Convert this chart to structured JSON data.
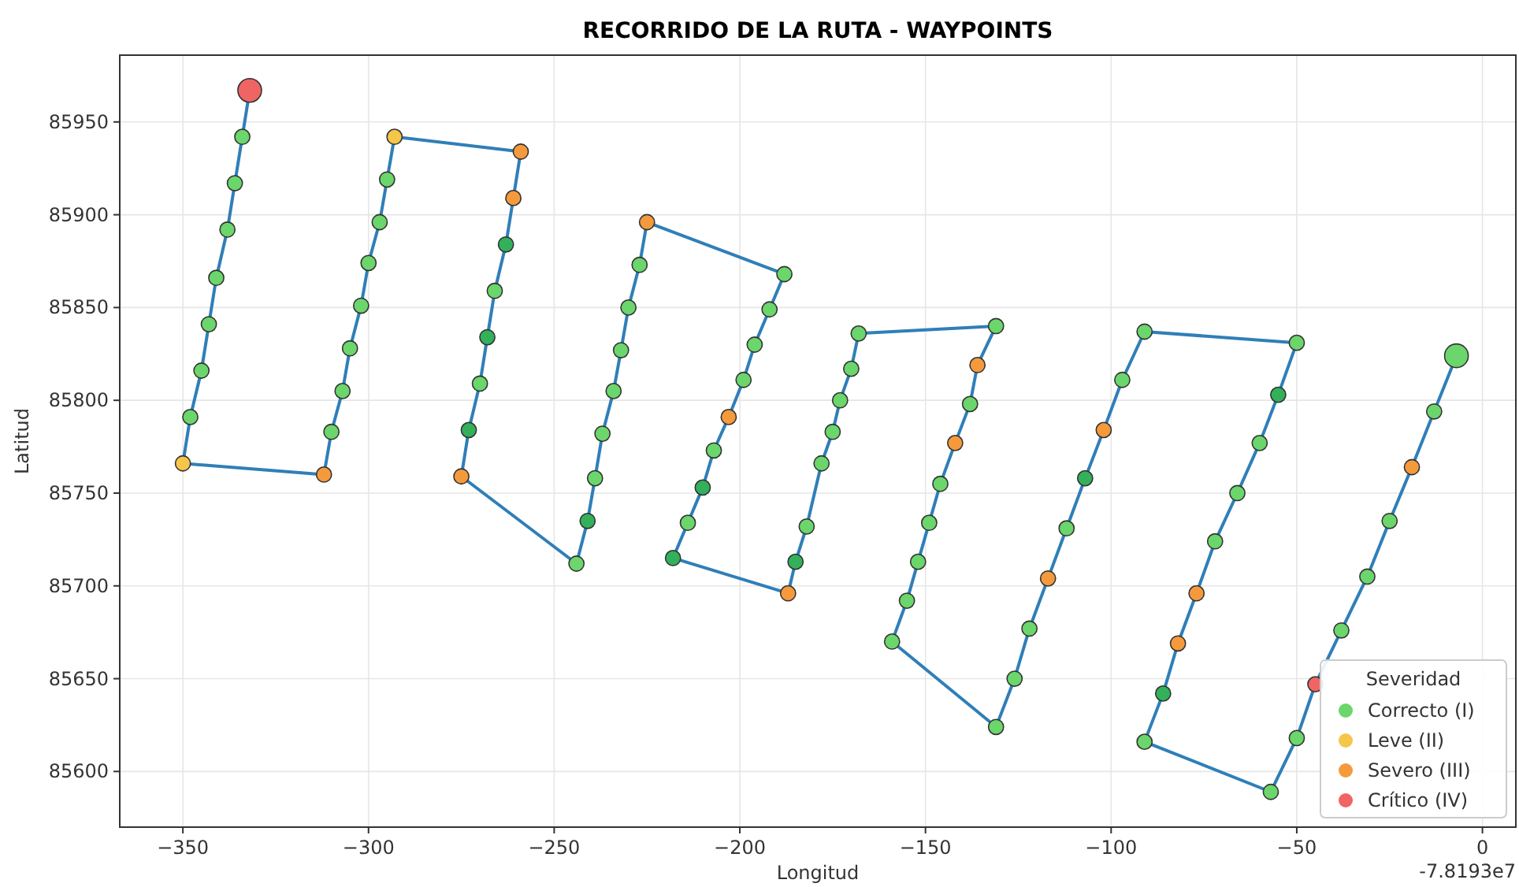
{
  "chart_data": {
    "type": "scatter",
    "title": "RECORRIDO DE LA RUTA - WAYPOINTS",
    "xlabel": "Longitud",
    "ylabel": "Latitud",
    "legend_title": "Severidad",
    "annotations": [
      "-7.8193e7"
    ],
    "xlim": [
      -367,
      9
    ],
    "ylim": [
      85570,
      85986
    ],
    "xticks": [
      -350,
      -300,
      -250,
      -200,
      -150,
      -100,
      -50,
      0
    ],
    "yticks": [
      85600,
      85650,
      85700,
      85750,
      85800,
      85850,
      85900,
      85950
    ],
    "grid": true,
    "legend": "bottom right",
    "series": [
      {
        "type": "line",
        "color": "#2f7fb8",
        "x": [
          -332,
          -334,
          -336,
          -338,
          -341,
          -343,
          -345,
          -348,
          -350,
          -312,
          -310,
          -307,
          -305,
          -302,
          -300,
          -297,
          -295,
          -293,
          -259,
          -261,
          -263,
          -266,
          -268,
          -270,
          -273,
          -275,
          -244,
          -241,
          -239,
          -237,
          -234,
          -232,
          -230,
          -227,
          -225,
          -188,
          -192,
          -196,
          -199,
          -203,
          -207,
          -210,
          -214,
          -218,
          -187,
          -185,
          -182,
          -178,
          -175,
          -173,
          -170,
          -168,
          -131,
          -136,
          -138,
          -142,
          -146,
          -149,
          -152,
          -155,
          -159,
          -131,
          -126,
          -122,
          -117,
          -112,
          -107,
          -102,
          -97,
          -91,
          -50,
          -55,
          -60,
          -66,
          -72,
          -77,
          -82,
          -86,
          -91,
          -57,
          -50,
          -45,
          -38,
          -31,
          -25,
          -19,
          -13,
          -7
        ],
        "values": [
          85967,
          85942,
          85917,
          85892,
          85866,
          85841,
          85816,
          85791,
          85766,
          85760,
          85783,
          85805,
          85828,
          85851,
          85874,
          85896,
          85919,
          85942,
          85934,
          85909,
          85884,
          85859,
          85834,
          85809,
          85784,
          85759,
          85712,
          85735,
          85758,
          85782,
          85805,
          85827,
          85850,
          85873,
          85896,
          85868,
          85849,
          85830,
          85811,
          85791,
          85773,
          85753,
          85734,
          85715,
          85696,
          85713,
          85732,
          85766,
          85783,
          85800,
          85817,
          85836,
          85840,
          85819,
          85798,
          85777,
          85755,
          85734,
          85713,
          85692,
          85670,
          85624,
          85650,
          85677,
          85704,
          85731,
          85758,
          85784,
          85811,
          85837,
          85831,
          85803,
          85777,
          85750,
          85724,
          85696,
          85669,
          85642,
          85616,
          85589,
          85618,
          85647,
          85676,
          85705,
          85735,
          85764,
          85794,
          85824
        ]
      },
      {
        "marker": "circle",
        "name": "Correcto (I)",
        "color": "#6bd66b",
        "x": [
          -334,
          -336,
          -338,
          -341,
          -343,
          -345,
          -348,
          -310,
          -307,
          -305,
          -302,
          -300,
          -297,
          -295,
          -263,
          -266,
          -268,
          -270,
          -273,
          -244,
          -241,
          -239,
          -237,
          -234,
          -232,
          -230,
          -227,
          -188,
          -192,
          -196,
          -199,
          -207,
          -210,
          -214,
          -218,
          -185,
          -182,
          -178,
          -175,
          -173,
          -170,
          -168,
          -131,
          -138,
          -146,
          -149,
          -152,
          -155,
          -159,
          -131,
          -126,
          -122,
          -112,
          -107,
          -97,
          -91,
          -50,
          -55,
          -60,
          -66,
          -72,
          -86,
          -91,
          -57,
          -50,
          -38,
          -31,
          -25,
          -13
        ],
        "values": [
          85942,
          85917,
          85892,
          85866,
          85841,
          85816,
          85791,
          85783,
          85805,
          85828,
          85851,
          85874,
          85896,
          85919,
          85884,
          85859,
          85834,
          85809,
          85784,
          85712,
          85735,
          85758,
          85782,
          85805,
          85827,
          85850,
          85873,
          85868,
          85849,
          85830,
          85811,
          85773,
          85753,
          85734,
          85715,
          85713,
          85732,
          85766,
          85783,
          85800,
          85817,
          85836,
          85840,
          85798,
          85755,
          85734,
          85713,
          85692,
          85670,
          85624,
          85650,
          85677,
          85731,
          85758,
          85811,
          85837,
          85831,
          85803,
          85777,
          85750,
          85724,
          85642,
          85616,
          85589,
          85618,
          85676,
          85705,
          85735,
          85794
        ],
        "colors": [
          "#6bd66b",
          "#6bd66b",
          "#6bd66b",
          "#6bd66b",
          "#6bd66b",
          "#6bd66b",
          "#6bd66b",
          "#6bd66b",
          "#6bd66b",
          "#6bd66b",
          "#6bd66b",
          "#6bd66b",
          "#6bd66b",
          "#6bd66b",
          "#33b05a",
          "#6bd66b",
          "#33b05a",
          "#6bd66b",
          "#33b05a",
          "#6bd66b",
          "#33b05a",
          "#6bd66b",
          "#6bd66b",
          "#6bd66b",
          "#6bd66b",
          "#6bd66b",
          "#6bd66b",
          "#6bd66b",
          "#6bd66b",
          "#6bd66b",
          "#6bd66b",
          "#6bd66b",
          "#33b05a",
          "#6bd66b",
          "#33b05a",
          "#33b05a",
          "#6bd66b",
          "#6bd66b",
          "#6bd66b",
          "#6bd66b",
          "#6bd66b",
          "#6bd66b",
          "#6bd66b",
          "#6bd66b",
          "#6bd66b",
          "#6bd66b",
          "#6bd66b",
          "#6bd66b",
          "#6bd66b",
          "#6bd66b",
          "#6bd66b",
          "#6bd66b",
          "#6bd66b",
          "#33b05a",
          "#6bd66b",
          "#6bd66b",
          "#6bd66b",
          "#33b05a",
          "#6bd66b",
          "#6bd66b",
          "#6bd66b",
          "#33b05a",
          "#6bd66b",
          "#6bd66b",
          "#6bd66b",
          "#6bd66b",
          "#6bd66b",
          "#6bd66b",
          "#6bd66b"
        ]
      },
      {
        "marker": "circle",
        "name": "Leve (II)",
        "color": "#f5c64a",
        "x": [
          -350,
          -293
        ],
        "values": [
          85766,
          85942
        ]
      },
      {
        "marker": "circle",
        "name": "Severo (III)",
        "color": "#f59a3c",
        "x": [
          -312,
          -259,
          -261,
          -275,
          -225,
          -203,
          -187,
          -136,
          -142,
          -117,
          -102,
          -77,
          -82,
          -19
        ],
        "values": [
          85760,
          85934,
          85909,
          85759,
          85896,
          85791,
          85696,
          85819,
          85777,
          85704,
          85784,
          85696,
          85669,
          85764
        ]
      },
      {
        "marker": "circle",
        "name": "Crítico (IV)",
        "color": "#f06464",
        "x": [
          -45
        ],
        "values": [
          85647
        ]
      },
      {
        "marker": "circle",
        "color": "#f06464",
        "x": [
          -332
        ],
        "values": [
          85967
        ]
      },
      {
        "marker": "circle",
        "color": "#6bd66b",
        "x": [
          -7
        ],
        "values": [
          85824
        ]
      }
    ]
  }
}
